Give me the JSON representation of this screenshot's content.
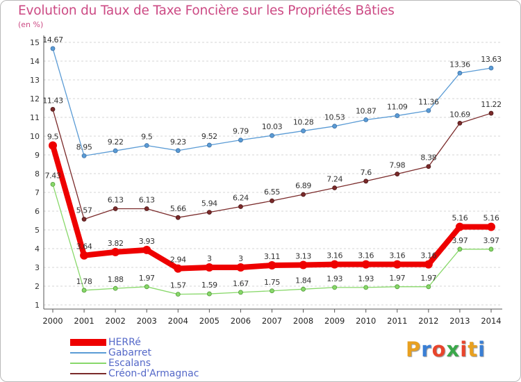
{
  "title": "Evolution du Taux de Taxe Foncière sur les Propriétés Bâties",
  "unit_label": "(en %)",
  "logo": {
    "letters": [
      "P",
      "r",
      "o",
      "x",
      "i",
      "t",
      "i"
    ],
    "colors": [
      "#e8a020",
      "#3a7fd5",
      "#e8452c",
      "#3aa84a",
      "#e8452c",
      "#e8a020",
      "#3a7fd5"
    ]
  },
  "chart_data": {
    "type": "line",
    "title": "Evolution du Taux de Taxe Foncière sur les Propriétés Bâties",
    "ylabel": "(en %)",
    "xlabel": "",
    "x": [
      "2000",
      "2001",
      "2002",
      "2003",
      "2004",
      "2005",
      "2006",
      "2007",
      "2008",
      "2009",
      "2010",
      "2011",
      "2012",
      "2013",
      "2014"
    ],
    "ylim": [
      1,
      15
    ],
    "yticks": [
      "1",
      "2",
      "3",
      "4",
      "5",
      "6",
      "7",
      "8",
      "9",
      "10",
      "11",
      "12",
      "13",
      "14",
      "15"
    ],
    "grid": "horizontal dashed",
    "legend": "bottom-left",
    "series": [
      {
        "name": "HERRé",
        "color": "#ee0000",
        "values": [
          9.5,
          3.64,
          3.82,
          3.93,
          2.94,
          3,
          3,
          3.11,
          3.13,
          3.16,
          3.16,
          3.16,
          3.16,
          5.16,
          5.16
        ],
        "labels": [
          "9.5",
          "3.64",
          "3.82",
          "3.93",
          "2.94",
          "3",
          "3",
          "3.11",
          "3.13",
          "3.16",
          "3.16",
          "3.16",
          "3.16",
          "5.16",
          "5.16"
        ]
      },
      {
        "name": "Gabarret",
        "color": "#5a9bd5",
        "values": [
          14.67,
          8.95,
          9.22,
          9.5,
          9.23,
          9.52,
          9.79,
          10.03,
          10.28,
          10.53,
          10.87,
          11.09,
          11.36,
          13.36,
          13.63
        ],
        "labels": [
          "14.67",
          "8.95",
          "9.22",
          "9.5",
          "9.23",
          "9.52",
          "9.79",
          "10.03",
          "10.28",
          "10.53",
          "10.87",
          "11.09",
          "11.36",
          "13.36",
          "13.63"
        ]
      },
      {
        "name": "Escalans",
        "color": "#88d86a",
        "values": [
          7.43,
          1.78,
          1.88,
          1.97,
          1.57,
          1.59,
          1.67,
          1.75,
          1.84,
          1.93,
          1.93,
          1.97,
          1.97,
          3.97,
          3.97
        ],
        "labels": [
          "7.43",
          "1.78",
          "1.88",
          "1.97",
          "1.57",
          "1.59",
          "1.67",
          "1.75",
          "1.84",
          "1.93",
          "1.93",
          "1.97",
          "1.97",
          "3.97",
          "3.97"
        ]
      },
      {
        "name": "Créon-d'Armagnac",
        "color": "#7a2a2a",
        "values": [
          11.43,
          5.57,
          6.13,
          6.13,
          5.66,
          5.94,
          6.24,
          6.55,
          6.89,
          7.24,
          7.6,
          7.98,
          8.38,
          10.69,
          11.22
        ],
        "labels": [
          "11.43",
          "5.57",
          "6.13",
          "6.13",
          "5.66",
          "5.94",
          "6.24",
          "6.55",
          "6.89",
          "7.24",
          "7.6",
          "7.98",
          "8.38",
          "10.69",
          "11.22"
        ]
      }
    ]
  }
}
